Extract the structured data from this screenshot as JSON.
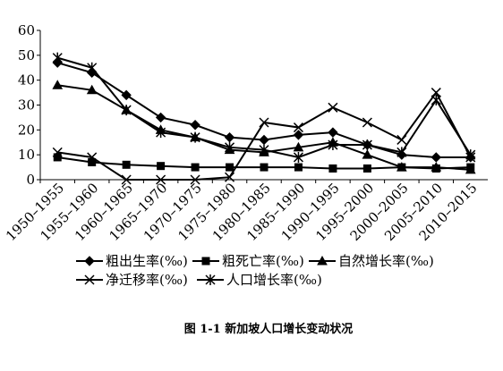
{
  "chart_data": {
    "type": "line",
    "title": "图 1-1 新加坡人口增长变动状况",
    "categories": [
      "1950–1955",
      "1955–1960",
      "1960–1965",
      "1965–1970",
      "1970–1975",
      "1975–1980",
      "1980–1985",
      "1985–1990",
      "1990–1995",
      "1995–2000",
      "2000–2005",
      "2005–2010",
      "2010–2015"
    ],
    "ylim": [
      0,
      60
    ],
    "yticks": [
      0,
      10,
      20,
      30,
      40,
      50,
      60
    ],
    "series": [
      {
        "name": "粗出生率(‰)",
        "color": "#000000",
        "marker": "diamond",
        "values": [
          47,
          43,
          34,
          25,
          22,
          17,
          16,
          18,
          19,
          14,
          10,
          9,
          9
        ]
      },
      {
        "name": "粗死亡率(‰)",
        "color": "#000000",
        "marker": "square",
        "values": [
          9,
          7,
          6,
          5.5,
          5,
          5,
          5,
          5,
          4.5,
          4.5,
          5,
          4.5,
          5
        ]
      },
      {
        "name": "自然增长率(‰)",
        "color": "#000000",
        "marker": "triangle",
        "values": [
          38,
          36,
          28,
          20,
          17,
          12,
          11,
          13,
          15,
          10,
          5,
          5,
          4
        ]
      },
      {
        "name": "净迁移率(‰)",
        "color": "#000000",
        "marker": "x",
        "values": [
          11,
          9,
          0,
          0,
          0,
          1,
          23,
          21,
          29,
          23,
          16,
          35,
          9
        ]
      },
      {
        "name": "人口增长率(‰)",
        "color": "#000000",
        "marker": "star",
        "values": [
          49,
          45,
          28,
          19,
          17,
          13,
          12,
          9,
          14,
          14,
          11,
          32,
          10
        ]
      }
    ]
  }
}
